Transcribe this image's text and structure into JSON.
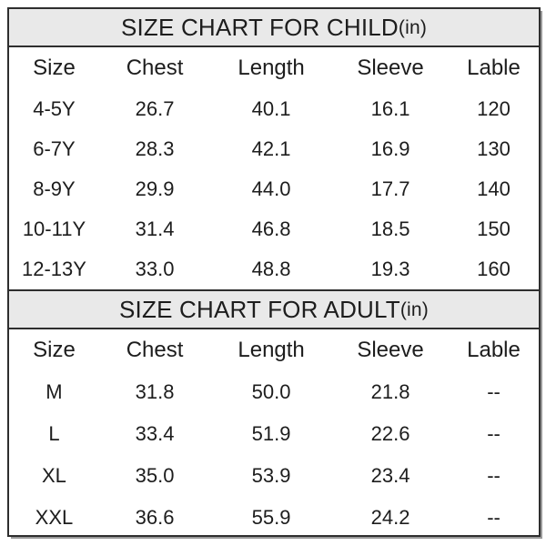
{
  "colors": {
    "page_bg": "#ffffff",
    "title_bar_bg": "#e9e9e9",
    "border": "#2e2e2e",
    "text": "#1d1d1d",
    "shadow": "#9a9a9a"
  },
  "child_table": {
    "title": "SIZE CHART FOR CHILD",
    "title_unit": "(in)",
    "headers": [
      "Size",
      "Chest",
      "Length",
      "Sleeve",
      "Lable"
    ],
    "rows": [
      [
        "4-5Y",
        "26.7",
        "40.1",
        "16.1",
        "120"
      ],
      [
        "6-7Y",
        "28.3",
        "42.1",
        "16.9",
        "130"
      ],
      [
        "8-9Y",
        "29.9",
        "44.0",
        "17.7",
        "140"
      ],
      [
        "10-11Y",
        "31.4",
        "46.8",
        "18.5",
        "150"
      ],
      [
        "12-13Y",
        "33.0",
        "48.8",
        "19.3",
        "160"
      ]
    ]
  },
  "adult_table": {
    "title": "SIZE CHART FOR ADULT",
    "title_unit": "(in)",
    "headers": [
      "Size",
      "Chest",
      "Length",
      "Sleeve",
      "Lable"
    ],
    "rows": [
      [
        "M",
        "31.8",
        "50.0",
        "21.8",
        "--"
      ],
      [
        "L",
        "33.4",
        "51.9",
        "22.6",
        "--"
      ],
      [
        "XL",
        "35.0",
        "53.9",
        "23.4",
        "--"
      ],
      [
        "XXL",
        "36.6",
        "55.9",
        "24.2",
        "--"
      ]
    ]
  },
  "chart_data": [
    {
      "type": "table",
      "title": "SIZE CHART FOR CHILD(in)",
      "columns": [
        "Size",
        "Chest",
        "Length",
        "Sleeve",
        "Lable"
      ],
      "rows": [
        [
          "4-5Y",
          26.7,
          40.1,
          16.1,
          120
        ],
        [
          "6-7Y",
          28.3,
          42.1,
          16.9,
          130
        ],
        [
          "8-9Y",
          29.9,
          44.0,
          17.7,
          140
        ],
        [
          "10-11Y",
          31.4,
          46.8,
          18.5,
          150
        ],
        [
          "12-13Y",
          33.0,
          48.8,
          19.3,
          160
        ]
      ],
      "unit": "in"
    },
    {
      "type": "table",
      "title": "SIZE CHART FOR ADULT(in)",
      "columns": [
        "Size",
        "Chest",
        "Length",
        "Sleeve",
        "Lable"
      ],
      "rows": [
        [
          "M",
          31.8,
          50.0,
          21.8,
          "--"
        ],
        [
          "L",
          33.4,
          51.9,
          22.6,
          "--"
        ],
        [
          "XL",
          35.0,
          53.9,
          23.4,
          "--"
        ],
        [
          "XXL",
          36.6,
          55.9,
          24.2,
          "--"
        ]
      ],
      "unit": "in"
    }
  ]
}
